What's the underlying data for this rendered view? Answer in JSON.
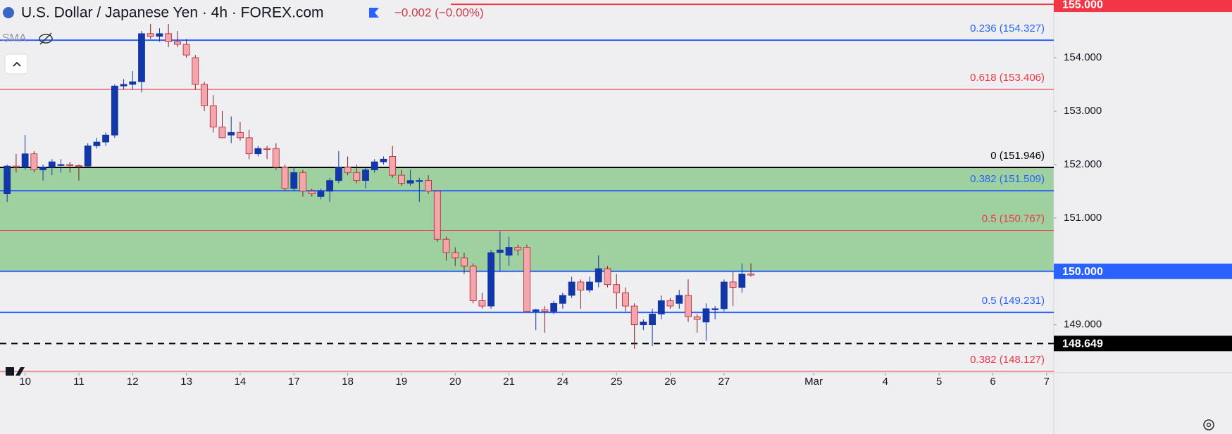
{
  "chart_data": {
    "type": "candlestick",
    "title": "U.S. Dollar / Japanese Yen · 4h · FOREX.com",
    "change": "−0.002 (−0.00%)",
    "indicator": "SMA",
    "up_color": "#1237a6",
    "down_color": "#f4a6ad",
    "x": [
      0,
      1,
      2,
      3,
      4,
      5,
      6,
      7,
      8,
      9,
      10,
      11,
      12,
      13,
      14,
      15,
      16,
      17,
      18,
      19,
      20,
      21,
      22,
      23,
      24,
      25,
      26,
      27,
      28,
      29,
      30,
      31,
      32,
      33,
      34,
      35,
      36,
      37,
      38,
      39,
      40,
      41,
      42,
      43,
      44,
      45,
      46,
      47,
      48,
      49,
      50,
      51,
      52,
      53,
      54,
      55,
      56,
      57,
      58,
      59,
      60,
      61,
      62,
      63,
      64,
      65,
      66,
      67,
      68,
      69,
      70,
      71,
      72,
      73,
      74,
      75,
      76,
      77,
      78,
      79,
      80,
      81,
      82,
      83
    ],
    "open": [
      151.45,
      151.97,
      151.95,
      152.2,
      151.9,
      151.95,
      152.0,
      152.0,
      151.98,
      151.97,
      152.35,
      152.42,
      152.55,
      153.47,
      153.5,
      153.55,
      154.45,
      154.4,
      154.45,
      154.3,
      154.25,
      154.0,
      153.5,
      153.1,
      152.7,
      152.55,
      152.6,
      152.5,
      152.2,
      152.3,
      152.3,
      151.95,
      151.55,
      151.85,
      151.5,
      151.4,
      151.5,
      151.7,
      151.95,
      151.85,
      151.7,
      151.9,
      152.05,
      152.15,
      151.8,
      151.65,
      151.7,
      151.7,
      151.5,
      150.6,
      150.35,
      150.25,
      150.1,
      149.45,
      149.35,
      150.35,
      150.3,
      150.45,
      150.45,
      149.25,
      149.28,
      149.25,
      149.4,
      149.55,
      149.8,
      149.65,
      149.8,
      150.05,
      149.75,
      149.6,
      149.35,
      149.0,
      149.0,
      149.2,
      149.45,
      149.4,
      149.55,
      149.15,
      149.05,
      149.3,
      149.3,
      149.8,
      149.7,
      149.95
    ],
    "high": [
      152.0,
      152.2,
      152.55,
      152.25,
      152.0,
      152.1,
      152.1,
      152.05,
      152.0,
      152.4,
      152.5,
      152.6,
      153.5,
      153.6,
      153.75,
      154.5,
      154.75,
      154.55,
      154.7,
      154.5,
      154.35,
      154.05,
      153.55,
      153.3,
      153.0,
      152.9,
      152.8,
      152.65,
      152.35,
      152.35,
      152.4,
      152.0,
      151.95,
      151.9,
      151.55,
      151.55,
      151.75,
      152.25,
      152.15,
      152.0,
      151.95,
      152.1,
      152.15,
      152.35,
      151.9,
      151.9,
      151.75,
      151.8,
      151.5,
      150.65,
      150.45,
      150.35,
      150.15,
      149.6,
      150.4,
      150.75,
      150.65,
      150.5,
      150.5,
      149.3,
      149.35,
      149.45,
      149.6,
      149.9,
      149.85,
      149.9,
      150.3,
      150.1,
      149.95,
      149.7,
      149.4,
      149.1,
      149.3,
      149.55,
      149.5,
      149.65,
      149.85,
      149.2,
      149.4,
      149.35,
      149.85,
      150.0,
      150.15,
      150.15
    ],
    "low": [
      151.3,
      151.85,
      151.9,
      151.85,
      151.7,
      151.8,
      151.85,
      151.85,
      151.7,
      151.95,
      152.3,
      152.35,
      152.5,
      153.4,
      153.4,
      153.35,
      154.35,
      154.3,
      154.2,
      154.2,
      154.0,
      153.4,
      153.0,
      152.6,
      152.5,
      152.4,
      152.45,
      152.1,
      152.15,
      152.1,
      151.9,
      151.5,
      151.5,
      151.4,
      151.4,
      151.35,
      151.3,
      151.65,
      151.8,
      151.65,
      151.55,
      151.85,
      152.0,
      151.75,
      151.6,
      151.6,
      151.3,
      151.45,
      150.55,
      150.2,
      150.1,
      149.95,
      149.4,
      149.3,
      149.3,
      150.0,
      150.1,
      150.3,
      149.25,
      148.9,
      148.85,
      149.2,
      149.3,
      149.5,
      149.3,
      149.6,
      149.7,
      149.7,
      149.3,
      149.25,
      148.55,
      148.9,
      148.6,
      149.1,
      149.3,
      149.3,
      149.05,
      148.85,
      148.7,
      149.1,
      149.25,
      149.35,
      149.6,
      149.9
    ],
    "close": [
      151.97,
      151.95,
      152.2,
      151.9,
      151.95,
      152.05,
      152.0,
      151.98,
      151.97,
      152.35,
      152.42,
      152.55,
      153.47,
      153.5,
      153.55,
      154.45,
      154.4,
      154.45,
      154.3,
      154.25,
      154.05,
      153.5,
      153.1,
      152.7,
      152.5,
      152.6,
      152.5,
      152.2,
      152.3,
      152.28,
      151.95,
      151.55,
      151.85,
      151.5,
      151.45,
      151.5,
      151.7,
      151.95,
      151.85,
      151.7,
      151.9,
      152.05,
      152.1,
      151.8,
      151.65,
      151.7,
      151.7,
      151.5,
      150.6,
      150.35,
      150.25,
      150.1,
      149.45,
      149.35,
      150.35,
      150.4,
      150.45,
      150.4,
      149.25,
      149.28,
      149.25,
      149.4,
      149.55,
      149.8,
      149.65,
      149.8,
      150.05,
      149.75,
      149.6,
      149.35,
      149.0,
      149.05,
      149.2,
      149.45,
      149.35,
      149.55,
      149.15,
      149.1,
      149.3,
      149.3,
      149.8,
      149.7,
      149.95,
      149.93
    ],
    "xlim": [
      -0.8,
      116.8
    ],
    "xticks": [
      {
        "value": 2,
        "label": "10"
      },
      {
        "value": 8,
        "label": "11"
      },
      {
        "value": 14,
        "label": "12"
      },
      {
        "value": 20,
        "label": "13"
      },
      {
        "value": 26,
        "label": "14"
      },
      {
        "value": 32,
        "label": "17"
      },
      {
        "value": 38,
        "label": "18"
      },
      {
        "value": 44,
        "label": "19"
      },
      {
        "value": 50,
        "label": "20"
      },
      {
        "value": 56,
        "label": "21"
      },
      {
        "value": 62,
        "label": "24"
      },
      {
        "value": 68,
        "label": "25"
      },
      {
        "value": 74,
        "label": "26"
      },
      {
        "value": 80,
        "label": "27"
      },
      {
        "value": 90,
        "label": "Mar"
      },
      {
        "value": 98,
        "label": "4"
      },
      {
        "value": 104,
        "label": "5"
      },
      {
        "value": 110,
        "label": "6"
      },
      {
        "value": 116,
        "label": "7"
      }
    ],
    "ylim": [
      148.1,
      155.08
    ],
    "yticks": [
      {
        "value": 149,
        "label": "149.000"
      },
      {
        "value": 151,
        "label": "151.000"
      },
      {
        "value": 152,
        "label": "152.000"
      },
      {
        "value": 153,
        "label": "153.000"
      },
      {
        "value": 154,
        "label": "154.000"
      }
    ],
    "zone": {
      "from": 151.946,
      "to": 150.0,
      "color": "#9fd09f"
    },
    "levels": [
      {
        "label": "0.236 (154.327)",
        "value": 154.327,
        "color": "#2962ff"
      },
      {
        "label": "0.618 (153.406)",
        "value": 153.406,
        "color": "#f23645"
      },
      {
        "label": "0 (151.946)",
        "value": 151.946,
        "color": "#000000"
      },
      {
        "label": "0.382 (151.509)",
        "value": 151.509,
        "color": "#2962ff"
      },
      {
        "label": "0.5 (150.767)",
        "value": 150.767,
        "color": "#f23645"
      },
      {
        "label": "0.5 (149.231)",
        "value": 149.231,
        "color": "#2962ff"
      },
      {
        "label": "0.382 (148.127)",
        "value": 148.127,
        "color": "#f23645"
      }
    ],
    "price_tags": [
      {
        "label": "155.000",
        "value": 155.0,
        "color": "#f23645"
      },
      {
        "label": "150.000",
        "value": 150.0,
        "color": "#2962ff"
      },
      {
        "label": "148.649",
        "value": 148.649,
        "color": "#000000",
        "dashed": true
      }
    ]
  }
}
